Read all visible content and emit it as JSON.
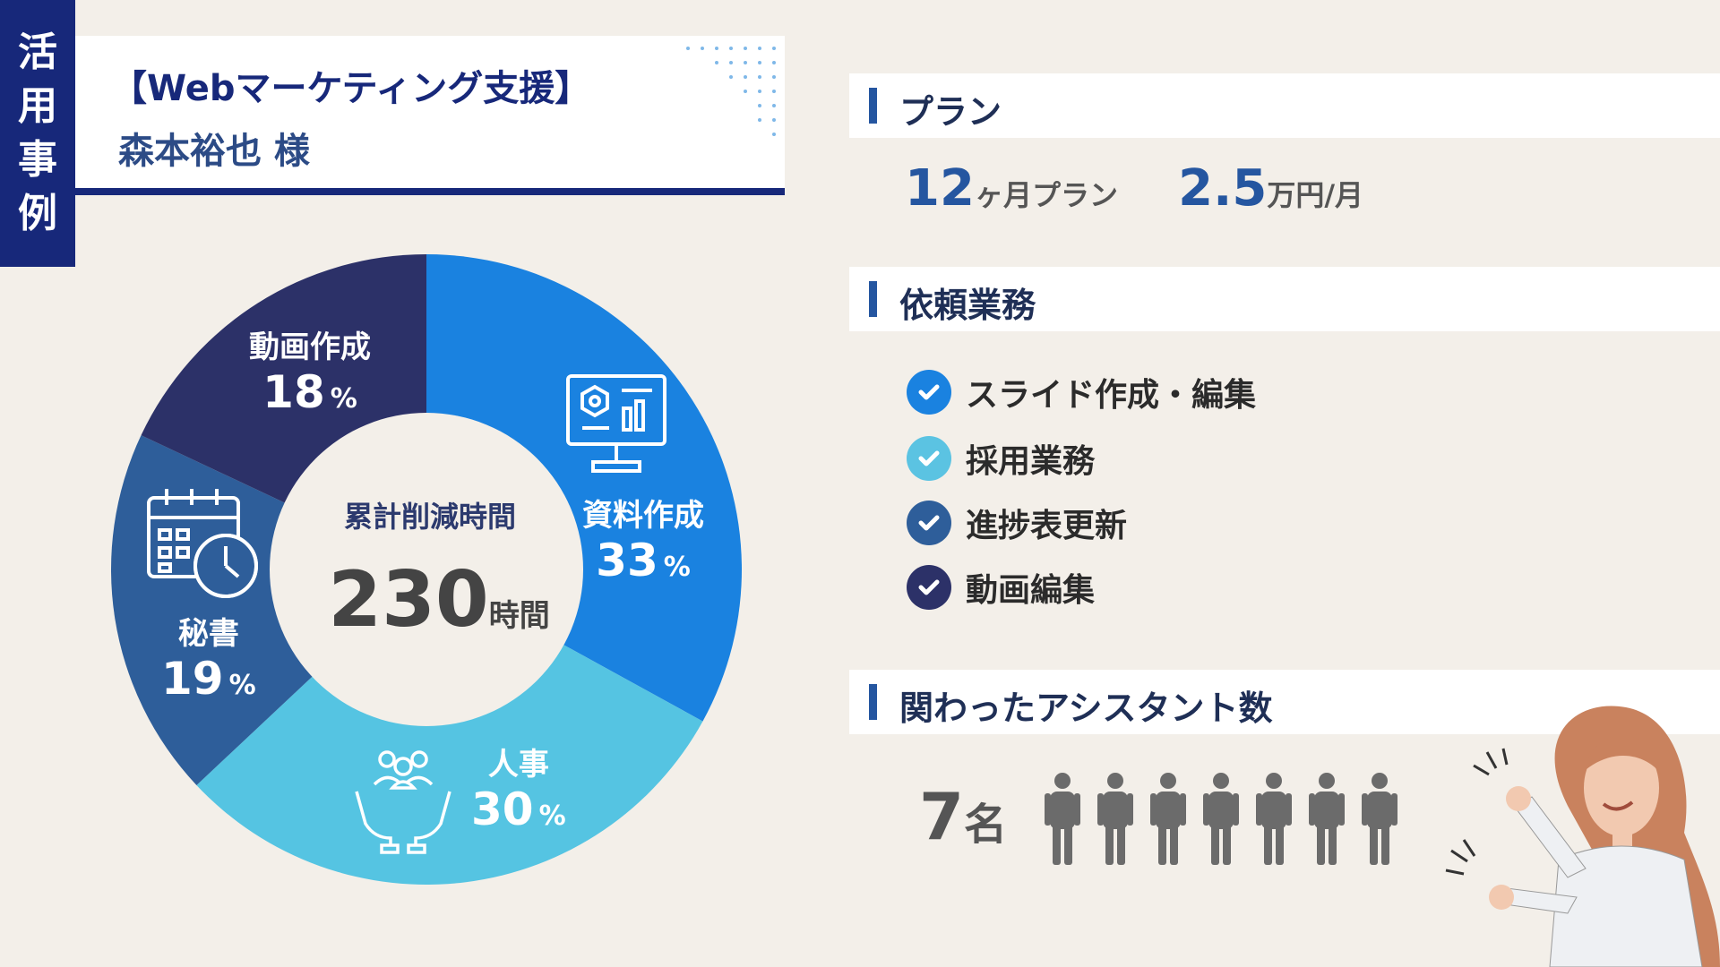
{
  "tag": {
    "chars": [
      "活",
      "用",
      "事",
      "例"
    ]
  },
  "title": {
    "line1": "【Webマーケティング支援】",
    "line2": "森本裕也 様"
  },
  "plan": {
    "heading": "プラン",
    "months": "12",
    "months_unit": "ヶ月プラン",
    "price": "2.5",
    "price_unit": "万円/月"
  },
  "tasks": {
    "heading": "依頼業務",
    "items": [
      {
        "label": "スライド作成・編集",
        "color": "#1a82e0"
      },
      {
        "label": "採用業務",
        "color": "#5bc3e2"
      },
      {
        "label": "進捗表更新",
        "color": "#2e5e9a"
      },
      {
        "label": "動画編集",
        "color": "#2c3168"
      }
    ]
  },
  "assistants": {
    "heading": "関わったアシスタント数",
    "count": "7",
    "unit": "名",
    "icon": "person-icon",
    "icon_count": 7
  },
  "chart_data": {
    "type": "pie",
    "center_label": "累計削減時間",
    "center_value": "230",
    "center_unit": "時間",
    "segments": [
      {
        "name": "資料作成",
        "value": 33,
        "color": "#1a82e0",
        "icon": "dashboard-monitor-icon"
      },
      {
        "name": "人事",
        "value": 30,
        "color": "#55c4e2",
        "icon": "hands-people-icon"
      },
      {
        "name": "秘書",
        "value": 19,
        "color": "#2e5e9a",
        "icon": "calendar-clock-icon"
      },
      {
        "name": "動画作成",
        "value": 18,
        "color": "#2c3168",
        "icon": ""
      }
    ],
    "unit": "%"
  }
}
